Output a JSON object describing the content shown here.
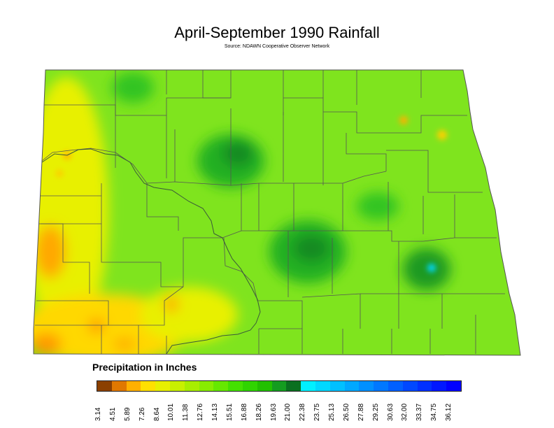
{
  "title": "April-September 1990 Rainfall",
  "subtitle": "Source: NDAWN Cooperative Observer Network",
  "legend": {
    "title": "Precipitation in Inches",
    "ticks": [
      "3.14",
      "4.51",
      "5.89",
      "7.26",
      "8.64",
      "10.01",
      "11.38",
      "12.76",
      "14.13",
      "15.51",
      "16.88",
      "18.26",
      "19.63",
      "21.00",
      "22.38",
      "23.75",
      "25.13",
      "26.50",
      "27.88",
      "29.25",
      "30.63",
      "32.00",
      "33.37",
      "34.75",
      "36.12"
    ],
    "colors": [
      "#8b4000",
      "#e07800",
      "#ffb000",
      "#ffe000",
      "#e8f000",
      "#c8f000",
      "#a8ee00",
      "#88ec00",
      "#66e800",
      "#44e000",
      "#30d400",
      "#22c000",
      "#149c20",
      "#0a7020",
      "#00f0ff",
      "#00d8ff",
      "#00c0ff",
      "#00a8ff",
      "#0090ff",
      "#0078ff",
      "#0060ff",
      "#0048ff",
      "#0030ff",
      "#0018ff",
      "#0000ff"
    ]
  },
  "map": {
    "region": "North Dakota",
    "base_color": "#7fe41e",
    "border_color": "#555555",
    "wet_color": "#0a7a20",
    "dry_color": "#ff9a00"
  }
}
